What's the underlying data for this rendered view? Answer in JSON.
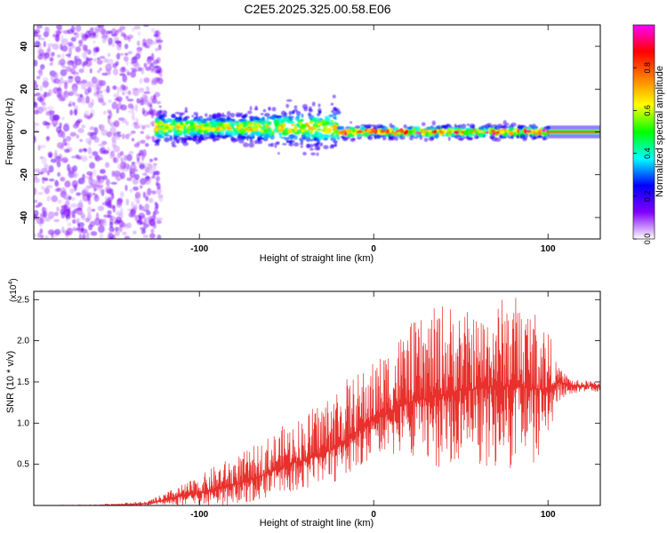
{
  "title": "C2E5.2025.325.00.58.E06",
  "chart_data": [
    {
      "type": "heatmap",
      "panel": "spectrogram",
      "xlabel": "Height of straight line (km)",
      "ylabel": "Frequency (Hz)",
      "xlim": [
        -195,
        130
      ],
      "ylim": [
        -50,
        50
      ],
      "xticks": [
        -100,
        0,
        100
      ],
      "xtick_labels": [
        "-100",
        "0",
        "100"
      ],
      "yticks": [
        -40,
        -20,
        0,
        20,
        40
      ],
      "ytick_labels": [
        "-40",
        "-20",
        "0",
        "20",
        "40"
      ],
      "colorbar": {
        "label": "Normalized spectral amplitude",
        "range": [
          0,
          1
        ],
        "ticks": [
          0.0,
          0.2,
          0.4,
          0.6,
          0.8
        ],
        "tick_labels": [
          "0.0",
          "0.2",
          "0.4",
          "0.6",
          "0.8"
        ],
        "colormap": [
          "#ffffff",
          "#8000ff",
          "#0000ff",
          "#00ffff",
          "#00ff00",
          "#ffff00",
          "#ff8000",
          "#ff0000",
          "#ff00ff"
        ]
      },
      "regions": [
        {
          "name": "noise",
          "x_range": [
            -195,
            -122
          ],
          "freq_range": [
            -50,
            50
          ],
          "amplitude": 0.12
        },
        {
          "name": "broad-band signal",
          "x_range": [
            -125,
            -20
          ],
          "freq_center": 2,
          "freq_halfwidth": 8,
          "amplitude": 0.4
        },
        {
          "name": "narrow tone",
          "x_range": [
            -20,
            100
          ],
          "freq_center": 0,
          "freq_halfwidth": 3,
          "amplitude": 0.55
        },
        {
          "name": "steady line",
          "x_range": [
            100,
            130
          ],
          "freq_center": 0,
          "freq_halfwidth": 1,
          "amplitude": 0.9
        }
      ]
    },
    {
      "type": "line",
      "panel": "snr",
      "xlabel": "Height of straight line (km)",
      "ylabel": "SNR (10 * v/v)",
      "y_scale_label": "(x10",
      "y_scale_exponent": "4",
      "xlim": [
        -195,
        130
      ],
      "ylim": [
        0,
        2.6
      ],
      "xticks": [
        -100,
        0,
        100
      ],
      "xtick_labels": [
        "-100",
        "0",
        "100"
      ],
      "yticks": [
        0.5,
        1.0,
        1.5,
        2.0,
        2.5
      ],
      "ytick_labels": [
        "0.5",
        "1.0",
        "1.5",
        "2.0",
        "2.5"
      ],
      "series": [
        {
          "name": "SNR",
          "color": "#e8302c",
          "x": [
            -195,
            -160,
            -130,
            -120,
            -110,
            -100,
            -90,
            -80,
            -70,
            -60,
            -50,
            -40,
            -30,
            -20,
            -10,
            0,
            10,
            20,
            30,
            40,
            50,
            60,
            70,
            80,
            90,
            100,
            105,
            110,
            115,
            120,
            130
          ],
          "y": [
            0.0,
            0.0,
            0.02,
            0.06,
            0.12,
            0.15,
            0.2,
            0.25,
            0.32,
            0.4,
            0.5,
            0.55,
            0.62,
            0.72,
            0.9,
            1.05,
            1.15,
            1.25,
            1.3,
            1.35,
            1.4,
            1.42,
            1.45,
            1.45,
            1.42,
            1.4,
            1.5,
            1.48,
            1.45,
            1.45,
            1.45
          ],
          "envelope_upper": [
            0.0,
            0.01,
            0.05,
            0.15,
            0.25,
            0.35,
            0.5,
            0.6,
            0.7,
            0.85,
            1.0,
            1.1,
            1.3,
            1.5,
            1.6,
            1.75,
            2.0,
            2.2,
            2.3,
            2.5,
            2.4,
            2.3,
            2.5,
            2.6,
            2.45,
            2.2,
            1.7,
            1.6,
            1.52,
            1.52,
            1.5
          ],
          "envelope_lower": [
            0.0,
            0.0,
            0.0,
            0.0,
            0.0,
            0.0,
            0.0,
            0.0,
            0.05,
            0.1,
            0.15,
            0.2,
            0.25,
            0.3,
            0.45,
            0.6,
            0.6,
            0.6,
            0.5,
            0.4,
            0.6,
            0.5,
            0.4,
            0.4,
            0.5,
            0.6,
            1.25,
            1.3,
            1.35,
            1.38,
            1.38
          ]
        }
      ]
    }
  ]
}
